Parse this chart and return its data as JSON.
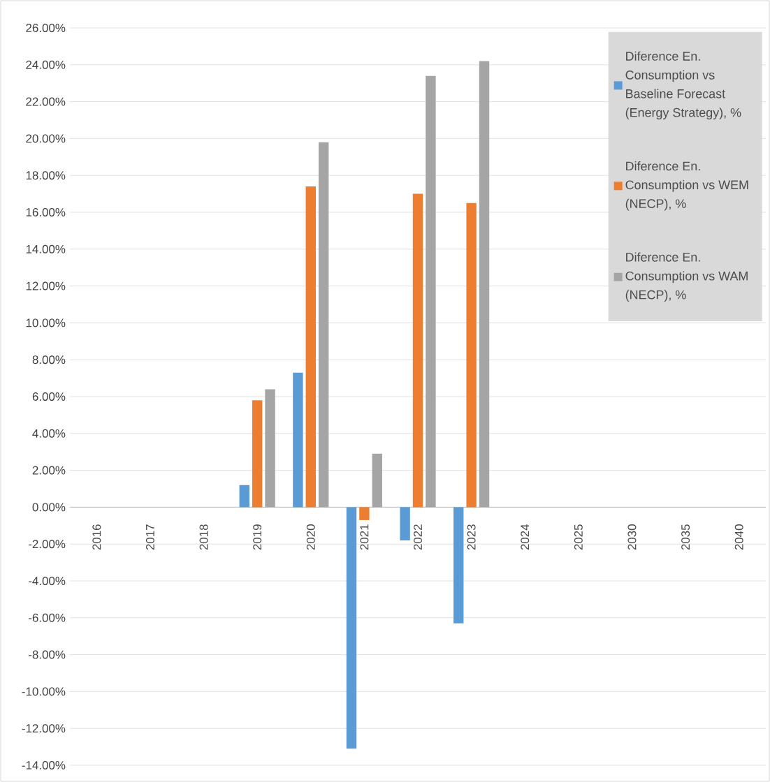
{
  "chart_data": {
    "type": "bar",
    "categories": [
      "2016",
      "2017",
      "2018",
      "2019",
      "2020",
      "2021",
      "2022",
      "2023",
      "2024",
      "2025",
      "2030",
      "2035",
      "2040"
    ],
    "series": [
      {
        "name": "Diference En. Consumption vs Baseline Forecast (Energy Strategy), %",
        "color": "#5b9bd5",
        "values": [
          null,
          null,
          null,
          1.2,
          7.3,
          -13.1,
          -1.8,
          -6.3,
          null,
          null,
          null,
          null,
          null
        ]
      },
      {
        "name": "Diference En. Consumption vs WEM (NECP), %",
        "color": "#ed7d31",
        "values": [
          null,
          null,
          null,
          5.8,
          17.4,
          -0.7,
          17.0,
          16.5,
          null,
          null,
          null,
          null,
          null
        ]
      },
      {
        "name": "Diference En. Consumption vs WAM (NECP), %",
        "color": "#a5a5a5",
        "values": [
          null,
          null,
          null,
          6.4,
          19.8,
          2.9,
          23.4,
          24.2,
          null,
          null,
          null,
          null,
          null
        ]
      }
    ],
    "ylim": [
      -14,
      26
    ],
    "yticks": [
      {
        "value": -14,
        "label": "-14.00%"
      },
      {
        "value": -12,
        "label": "-12.00%"
      },
      {
        "value": -10,
        "label": "-10.00%"
      },
      {
        "value": -8,
        "label": "-8.00%"
      },
      {
        "value": -6,
        "label": "-6.00%"
      },
      {
        "value": -4,
        "label": "-4.00%"
      },
      {
        "value": -2,
        "label": "-2.00%"
      },
      {
        "value": 0,
        "label": "0.00%"
      },
      {
        "value": 2,
        "label": "2.00%"
      },
      {
        "value": 4,
        "label": "4.00%"
      },
      {
        "value": 6,
        "label": "6.00%"
      },
      {
        "value": 8,
        "label": "8.00%"
      },
      {
        "value": 10,
        "label": "10.00%"
      },
      {
        "value": 12,
        "label": "12.00%"
      },
      {
        "value": 14,
        "label": "14.00%"
      },
      {
        "value": 16,
        "label": "16.00%"
      },
      {
        "value": 18,
        "label": "18.00%"
      },
      {
        "value": 20,
        "label": "20.00%"
      },
      {
        "value": 22,
        "label": "22.00%"
      },
      {
        "value": 24,
        "label": "24.00%"
      },
      {
        "value": 26,
        "label": "26.00%"
      }
    ],
    "grid": "y",
    "legend": "top right"
  }
}
